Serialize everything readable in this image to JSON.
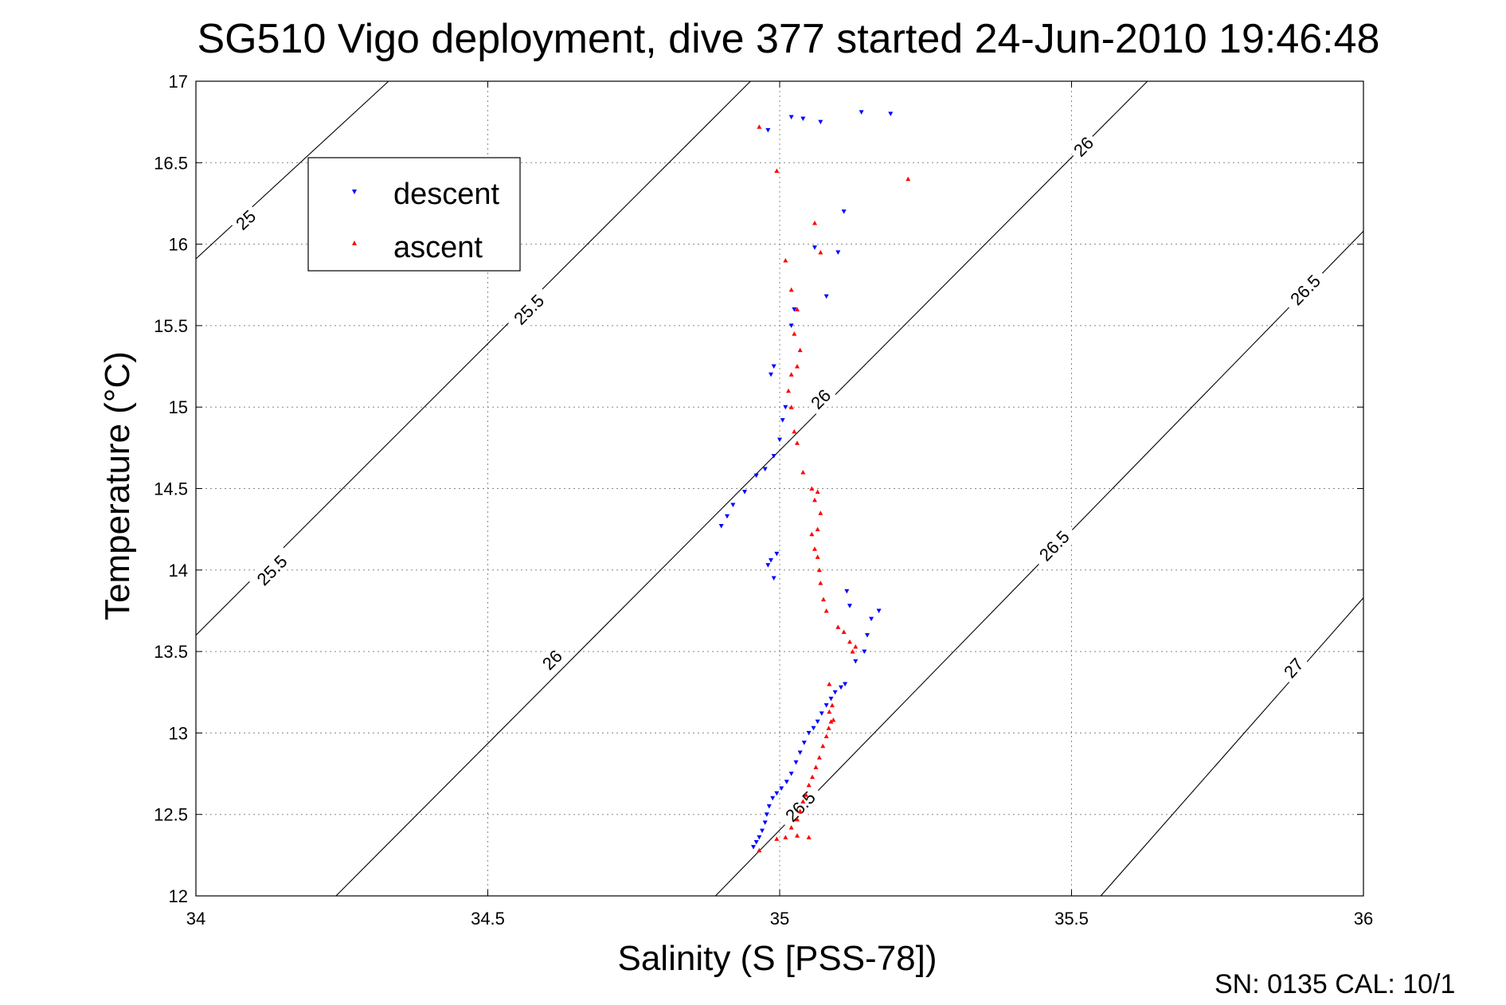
{
  "chart_data": {
    "type": "scatter",
    "title": "SG510 Vigo deployment, dive 377 started 24-Jun-2010 19:46:48",
    "xlabel": "Salinity (S [PSS-78])",
    "ylabel": "Temperature (°C)",
    "xlim": [
      34,
      36
    ],
    "ylim": [
      12,
      17
    ],
    "xticks": [
      "34",
      "34.5",
      "35",
      "35.5",
      "36"
    ],
    "yticks": [
      "12",
      "12.5",
      "13",
      "13.5",
      "14",
      "14.5",
      "15",
      "15.5",
      "16",
      "16.5",
      "17"
    ],
    "grid": true,
    "legend_position": "top-left",
    "footer": "SN: 0135  CAL: 10/1",
    "colors": {
      "descent": "#0000ff",
      "ascent": "#ff0000",
      "contour": "#000000"
    },
    "isopycnals": [
      {
        "label": "25",
        "points": [
          [
            34.0,
            15.91
          ],
          [
            34.33,
            17.0
          ]
        ],
        "labels": [
          {
            "text": "25",
            "s": 34.085,
            "t": 16.15
          }
        ]
      },
      {
        "label": "25.5",
        "points": [
          [
            34.0,
            13.6
          ],
          [
            34.95,
            17.0
          ]
        ],
        "labels": [
          {
            "text": "25.5",
            "s": 34.13,
            "t": 14.0
          },
          {
            "text": "25.5",
            "s": 34.57,
            "t": 15.6
          }
        ]
      },
      {
        "label": "26",
        "points": [
          [
            34.24,
            12.0
          ],
          [
            35.63,
            17.0
          ]
        ],
        "labels": [
          {
            "text": "26",
            "s": 34.61,
            "t": 13.45
          },
          {
            "text": "26",
            "s": 35.07,
            "t": 15.05
          },
          {
            "text": "26",
            "s": 35.52,
            "t": 16.6
          }
        ]
      },
      {
        "label": "26.5",
        "points": [
          [
            34.89,
            12.0
          ],
          [
            36.0,
            16.08
          ]
        ],
        "labels": [
          {
            "text": "26.5",
            "s": 35.035,
            "t": 12.55
          },
          {
            "text": "26.5",
            "s": 35.47,
            "t": 14.15
          },
          {
            "text": "26.5",
            "s": 35.9,
            "t": 15.72
          }
        ]
      },
      {
        "label": "27",
        "points": [
          [
            35.55,
            12.0
          ],
          [
            36.0,
            13.83
          ]
        ],
        "labels": [
          {
            "text": "27",
            "s": 35.88,
            "t": 13.4
          }
        ]
      }
    ],
    "series": [
      {
        "name": "descent",
        "marker": "triangle-down",
        "points": [
          [
            34.955,
            12.3
          ],
          [
            34.96,
            12.33
          ],
          [
            34.965,
            12.36
          ],
          [
            34.97,
            12.4
          ],
          [
            34.975,
            12.45
          ],
          [
            34.978,
            12.5
          ],
          [
            34.982,
            12.55
          ],
          [
            34.988,
            12.6
          ],
          [
            34.995,
            12.63
          ],
          [
            35.003,
            12.66
          ],
          [
            35.012,
            12.7
          ],
          [
            35.02,
            12.75
          ],
          [
            35.028,
            12.82
          ],
          [
            35.035,
            12.88
          ],
          [
            35.042,
            12.94
          ],
          [
            35.05,
            13.0
          ],
          [
            35.058,
            13.03
          ],
          [
            35.065,
            13.07
          ],
          [
            35.072,
            13.12
          ],
          [
            35.08,
            13.17
          ],
          [
            35.088,
            13.21
          ],
          [
            35.095,
            13.25
          ],
          [
            35.105,
            13.28
          ],
          [
            35.112,
            13.3
          ],
          [
            35.13,
            13.44
          ],
          [
            35.145,
            13.5
          ],
          [
            35.15,
            13.6
          ],
          [
            35.157,
            13.7
          ],
          [
            35.17,
            13.75
          ],
          [
            35.115,
            13.87
          ],
          [
            35.12,
            13.78
          ],
          [
            34.99,
            13.95
          ],
          [
            34.98,
            14.03
          ],
          [
            34.985,
            14.06
          ],
          [
            34.995,
            14.1
          ],
          [
            34.9,
            14.27
          ],
          [
            34.91,
            14.33
          ],
          [
            34.92,
            14.4
          ],
          [
            34.94,
            14.48
          ],
          [
            34.96,
            14.58
          ],
          [
            34.975,
            14.62
          ],
          [
            34.99,
            14.7
          ],
          [
            35.0,
            14.8
          ],
          [
            35.005,
            14.92
          ],
          [
            35.01,
            15.0
          ],
          [
            34.985,
            15.2
          ],
          [
            34.99,
            15.25
          ],
          [
            35.02,
            15.5
          ],
          [
            35.025,
            15.6
          ],
          [
            35.08,
            15.68
          ],
          [
            35.06,
            15.98
          ],
          [
            35.1,
            15.95
          ],
          [
            35.11,
            16.2
          ],
          [
            34.98,
            16.7
          ],
          [
            35.02,
            16.78
          ],
          [
            35.04,
            16.77
          ],
          [
            35.07,
            16.75
          ],
          [
            35.14,
            16.81
          ],
          [
            35.19,
            16.8
          ]
        ]
      },
      {
        "name": "ascent",
        "marker": "triangle-up",
        "points": [
          [
            34.965,
            12.28
          ],
          [
            34.995,
            12.35
          ],
          [
            35.01,
            12.36
          ],
          [
            35.03,
            12.37
          ],
          [
            35.05,
            12.36
          ],
          [
            35.02,
            12.42
          ],
          [
            35.03,
            12.47
          ],
          [
            35.035,
            12.52
          ],
          [
            35.04,
            12.58
          ],
          [
            35.045,
            12.62
          ],
          [
            35.05,
            12.68
          ],
          [
            35.056,
            12.73
          ],
          [
            35.062,
            12.79
          ],
          [
            35.068,
            12.85
          ],
          [
            35.074,
            12.92
          ],
          [
            35.08,
            12.98
          ],
          [
            35.084,
            13.03
          ],
          [
            35.088,
            13.07
          ],
          [
            35.092,
            13.08
          ],
          [
            35.085,
            13.13
          ],
          [
            35.09,
            13.17
          ],
          [
            35.085,
            13.3
          ],
          [
            35.125,
            13.5
          ],
          [
            35.13,
            13.53
          ],
          [
            35.12,
            13.56
          ],
          [
            35.11,
            13.62
          ],
          [
            35.1,
            13.65
          ],
          [
            35.08,
            13.75
          ],
          [
            35.075,
            13.82
          ],
          [
            35.07,
            13.92
          ],
          [
            35.068,
            14.0
          ],
          [
            35.065,
            14.08
          ],
          [
            35.06,
            14.13
          ],
          [
            35.055,
            14.22
          ],
          [
            35.065,
            14.25
          ],
          [
            35.07,
            14.35
          ],
          [
            35.06,
            14.43
          ],
          [
            35.065,
            14.48
          ],
          [
            35.055,
            14.5
          ],
          [
            35.04,
            14.6
          ],
          [
            35.03,
            14.78
          ],
          [
            35.025,
            14.85
          ],
          [
            35.02,
            15.0
          ],
          [
            35.015,
            15.1
          ],
          [
            35.02,
            15.2
          ],
          [
            35.03,
            15.25
          ],
          [
            35.035,
            15.35
          ],
          [
            35.025,
            15.45
          ],
          [
            35.03,
            15.6
          ],
          [
            35.02,
            15.72
          ],
          [
            35.01,
            15.9
          ],
          [
            35.07,
            15.95
          ],
          [
            35.06,
            16.13
          ],
          [
            34.995,
            16.45
          ],
          [
            34.965,
            16.72
          ],
          [
            35.22,
            16.4
          ]
        ]
      }
    ]
  }
}
